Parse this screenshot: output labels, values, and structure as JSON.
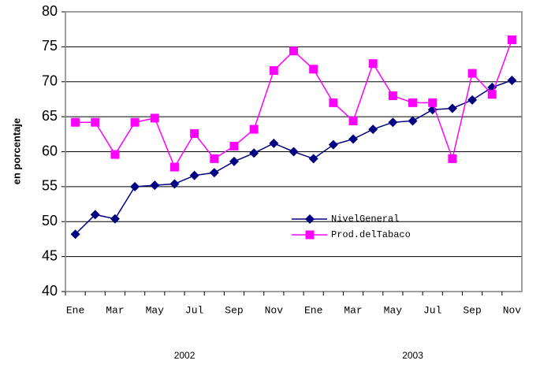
{
  "chart_data": {
    "type": "line",
    "ylabel": "en porcentaje",
    "categories": [
      "Ene",
      null,
      "Mar",
      null,
      "May",
      null,
      "Jul",
      null,
      "Sep",
      null,
      "Nov",
      null,
      "Ene",
      null,
      "Mar",
      null,
      "May",
      null,
      "Jul",
      null,
      "Sep",
      null,
      "Nov"
    ],
    "group_labels": [
      "2002",
      "2003"
    ],
    "series": [
      {
        "name": "NivelGeneral",
        "color": "#000080",
        "marker": "diamond",
        "values": [
          48.2,
          51.0,
          50.4,
          55.0,
          55.2,
          55.4,
          56.6,
          57.0,
          58.6,
          59.8,
          61.2,
          60.0,
          59.0,
          61.0,
          61.8,
          63.2,
          64.2,
          64.4,
          66.0,
          66.2,
          67.4,
          69.2,
          70.2
        ]
      },
      {
        "name": "Prod.delTabaco",
        "color": "#ff00ff",
        "marker": "square",
        "values": [
          64.2,
          64.2,
          59.6,
          64.2,
          64.8,
          57.8,
          62.6,
          59.0,
          60.8,
          63.2,
          71.6,
          74.4,
          71.8,
          67.0,
          64.4,
          72.6,
          68.0,
          67.0,
          67.0,
          59.0,
          71.2,
          68.2,
          76.0
        ]
      }
    ],
    "ylim": [
      40,
      80
    ],
    "yticks": [
      40,
      45,
      50,
      55,
      60,
      65,
      70,
      75,
      80
    ],
    "grid": true
  }
}
